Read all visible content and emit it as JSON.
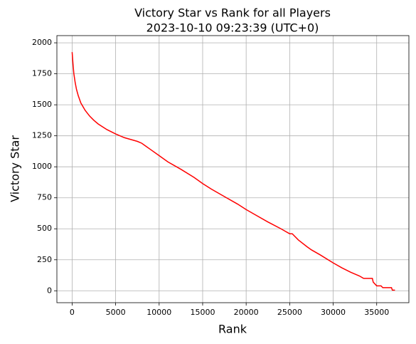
{
  "chart_data": {
    "type": "line",
    "title": "Victory Star vs Rank for all Players",
    "subtitle": "2023-10-10 09:23:39 (UTC+0)",
    "x_label": "Rank",
    "y_label": "Victory Star",
    "x": [
      1,
      100,
      200,
      350,
      500,
      700,
      1000,
      1500,
      2000,
      2500,
      3000,
      4000,
      5000,
      6000,
      7000,
      7500,
      8000,
      8500,
      9000,
      10000,
      11000,
      12500,
      14000,
      15000,
      16000,
      17500,
      19000,
      20000,
      21000,
      22500,
      24000,
      24500,
      25000,
      25300,
      26000,
      27000,
      27500,
      28500,
      30000,
      31000,
      32000,
      32500,
      33000,
      33500,
      34500,
      34600,
      35000,
      35500,
      35700,
      36700,
      36800,
      37100
    ],
    "series": [
      {
        "name": "Victory Star",
        "color": "#ff0000",
        "values": [
          1925,
          1830,
          1750,
          1680,
          1625,
          1575,
          1515,
          1455,
          1410,
          1375,
          1345,
          1300,
          1265,
          1235,
          1215,
          1205,
          1190,
          1165,
          1140,
          1090,
          1040,
          980,
          915,
          865,
          820,
          760,
          700,
          655,
          615,
          555,
          500,
          480,
          460,
          460,
          410,
          355,
          330,
          290,
          225,
          185,
          150,
          135,
          120,
          100,
          100,
          70,
          40,
          40,
          25,
          25,
          5,
          5
        ]
      }
    ],
    "xlim": [
      -1750,
      38700
    ],
    "ylim": [
      -96,
      2058
    ],
    "xticks": [
      0,
      5000,
      10000,
      15000,
      20000,
      25000,
      30000,
      35000
    ],
    "yticks": [
      0,
      250,
      500,
      750,
      1000,
      1250,
      1500,
      1750,
      2000
    ],
    "grid": true
  }
}
